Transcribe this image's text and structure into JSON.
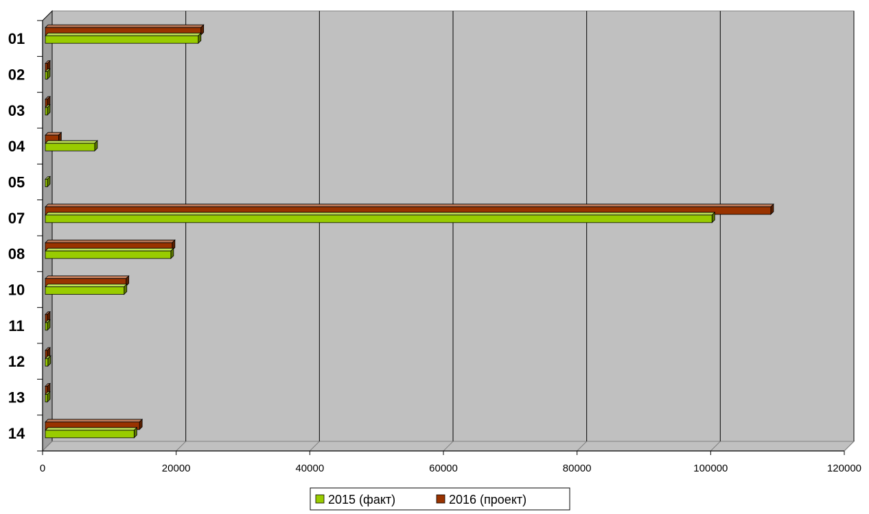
{
  "chart_data": {
    "type": "bar",
    "orientation": "horizontal",
    "style": "3d-clustered",
    "categories": [
      "01",
      "02",
      "03",
      "04",
      "05",
      "07",
      "08",
      "10",
      "11",
      "12",
      "13",
      "14"
    ],
    "series": [
      {
        "name": "2015 (факт)",
        "color": "#99cc00",
        "values": [
          23300,
          200,
          350,
          7800,
          150,
          100200,
          19200,
          12200,
          500,
          800,
          150,
          13700
        ]
      },
      {
        "name": "2016 (проект)",
        "color": "#993300",
        "values": [
          23700,
          350,
          150,
          2400,
          0,
          109000,
          19400,
          12500,
          500,
          150,
          200,
          14500
        ]
      }
    ],
    "ticks": [
      "0",
      "20000",
      "40000",
      "60000",
      "80000",
      "100000",
      "120000"
    ],
    "xlim": [
      0,
      120000
    ],
    "grid": true,
    "legend_position": "bottom",
    "colors": {
      "wall": "#c0c0c0",
      "floor": "#c0c0c0",
      "side_wall": "#a0a0a0"
    }
  }
}
